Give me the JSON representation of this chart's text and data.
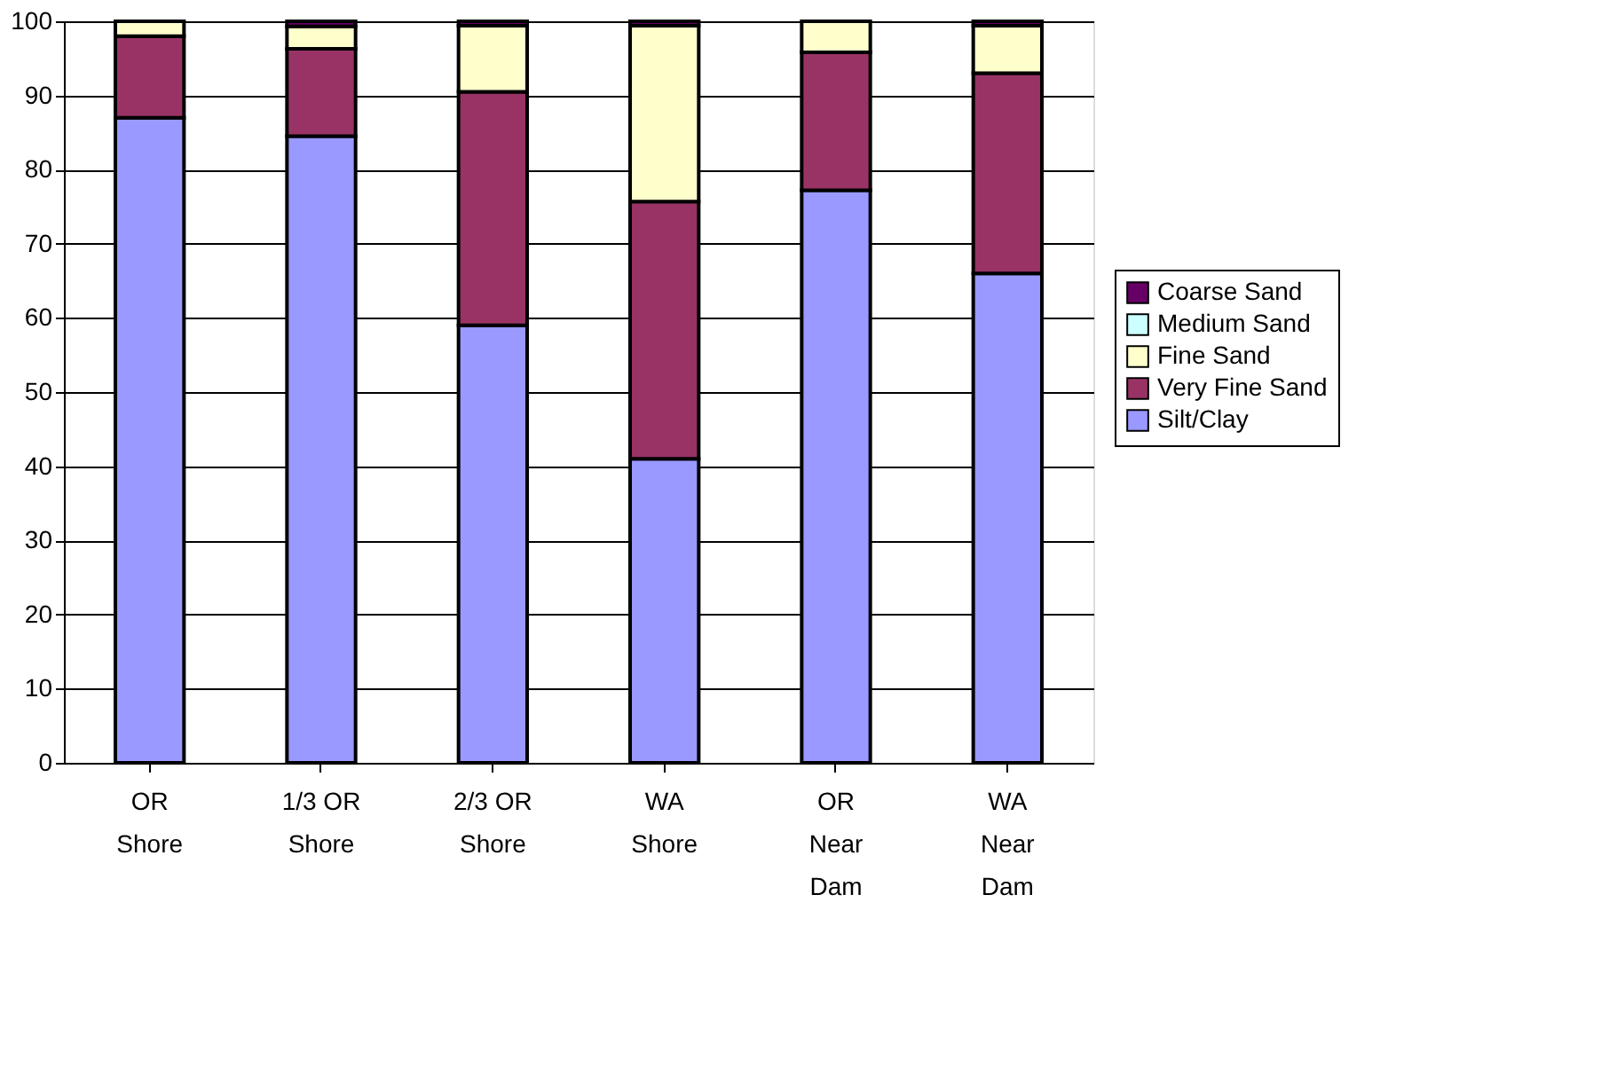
{
  "chart_data": {
    "type": "bar",
    "stacked": true,
    "categories": [
      "OR Shore",
      "1/3 OR Shore",
      "2/3 OR Shore",
      "WA Shore",
      "OR Near Dam",
      "WA Near Dam"
    ],
    "series": [
      {
        "name": "Silt/Clay",
        "color": "#9999ff",
        "values": [
          87,
          84.5,
          59,
          41,
          77.2,
          66
        ]
      },
      {
        "name": "Very Fine Sand",
        "color": "#993366",
        "values": [
          11,
          11.8,
          31.5,
          34.7,
          18.6,
          27
        ]
      },
      {
        "name": "Fine Sand",
        "color": "#ffffcc",
        "values": [
          2,
          3,
          8.9,
          23.7,
          4.2,
          6.4
        ]
      },
      {
        "name": "Medium Sand",
        "color": "#ccffff",
        "values": [
          0,
          0,
          0,
          0,
          0,
          0
        ]
      },
      {
        "name": "Coarse Sand",
        "color": "#660066",
        "values": [
          0,
          0.7,
          0.6,
          0.6,
          0,
          0.6
        ]
      }
    ],
    "ylim": [
      0,
      100
    ],
    "yticks": [
      0,
      10,
      20,
      30,
      40,
      50,
      60,
      70,
      80,
      90,
      100
    ],
    "grid": "y",
    "legend": "right"
  }
}
